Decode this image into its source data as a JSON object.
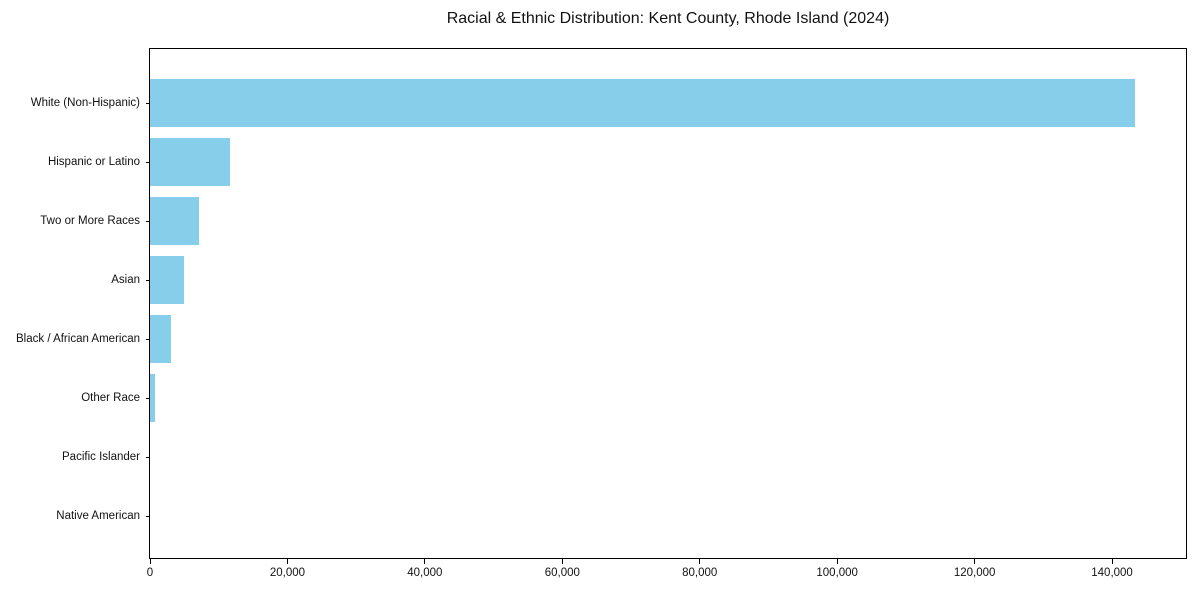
{
  "figure": {
    "background": "#ffffff",
    "text_color": "#121212",
    "spine_color": "#000000"
  },
  "chart_data": {
    "type": "bar",
    "orientation": "horizontal",
    "title": "Racial & Ethnic Distribution: Kent County, Rhode Island (2024)",
    "categories": [
      "White (Non-Hispanic)",
      "Hispanic or Latino",
      "Two or More Races",
      "Asian",
      "Black / African American",
      "Other Race",
      "Pacific Islander",
      "Native American"
    ],
    "values": [
      143400,
      11600,
      7200,
      5000,
      3100,
      700,
      0,
      0
    ],
    "xlim": [
      0,
      150760
    ],
    "x_ticks": [
      0,
      20000,
      40000,
      60000,
      80000,
      100000,
      120000,
      140000
    ],
    "x_tick_labels": [
      "0",
      "20,000",
      "40,000",
      "60,000",
      "80,000",
      "100,000",
      "120,000",
      "140,000"
    ],
    "xlabel": "",
    "ylabel": "",
    "bar_color": "#87CEEB",
    "grid": false,
    "legend": null
  }
}
